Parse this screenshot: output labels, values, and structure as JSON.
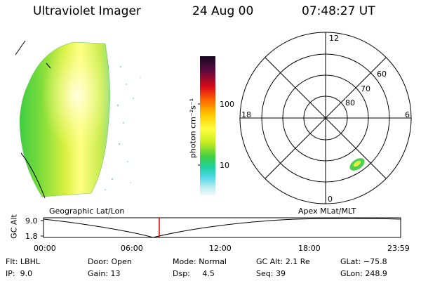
{
  "header": {
    "title": "Ultraviolet Imager",
    "date": "24 Aug 00",
    "time": "07:48:27 UT"
  },
  "colorbar": {
    "label": "photon cm⁻²s⁻¹",
    "ticks": [
      "100",
      "10"
    ],
    "scale": "log"
  },
  "polar_plot": {
    "mlt_labels": {
      "top": "12",
      "right": "6",
      "bottom": "0",
      "left": "18"
    },
    "lat_labels": [
      "60",
      "70",
      "80"
    ]
  },
  "timeline": {
    "left_label": "Geographic Lat/Lon",
    "right_label": "Apex MLat/MLT",
    "y_axis_label": "GC Alt",
    "y_ticks": [
      "9.0",
      "1.8"
    ],
    "x_ticks": [
      "00:00",
      "06:00",
      "12:00",
      "18:00",
      "23:59"
    ],
    "current_time_marker": "07:48"
  },
  "info": {
    "flt": {
      "label": "Flt:",
      "value": "LBHL"
    },
    "ip": {
      "label": "IP:",
      "value": "9.0"
    },
    "door": {
      "label": "Door:",
      "value": "Open"
    },
    "gain": {
      "label": "Gain:",
      "value": "13"
    },
    "mode": {
      "label": "Mode:",
      "value": "Normal"
    },
    "dsp": {
      "label": "Dsp:",
      "value": "4.5"
    },
    "gc_alt": {
      "label": "GC Alt:",
      "value": "2.1 Re"
    },
    "seq": {
      "label": "Seq:",
      "value": "39"
    },
    "glat": {
      "label": "GLat:",
      "value": "−75.8"
    },
    "glon": {
      "label": "GLon:",
      "value": "248.9"
    }
  },
  "colors": {
    "accent_red": "#e00000",
    "background": "#ffffff",
    "line": "#000000"
  }
}
